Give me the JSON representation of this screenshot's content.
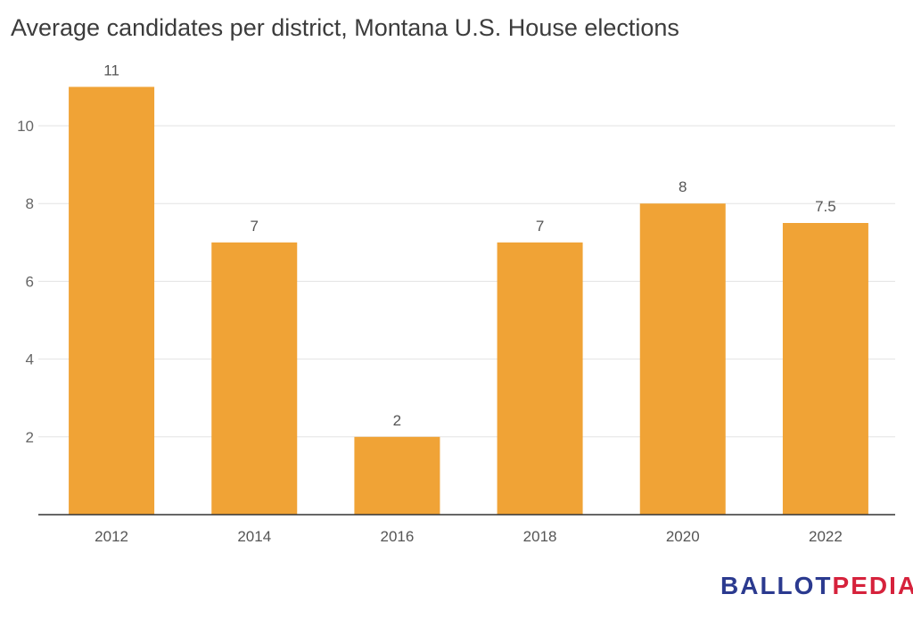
{
  "chart_data": {
    "type": "bar",
    "title": "Average candidates per district, Montana U.S. House elections",
    "categories": [
      "2012",
      "2014",
      "2016",
      "2018",
      "2020",
      "2022"
    ],
    "values": [
      11,
      7,
      2,
      7,
      8,
      7.5
    ],
    "value_labels": [
      "11",
      "7",
      "2",
      "7",
      "8",
      "7.5"
    ],
    "yticks": [
      2,
      4,
      6,
      8,
      10
    ],
    "ylim": [
      0,
      12
    ],
    "grid": true,
    "legend": "none",
    "bar_color": "#f0a336",
    "grid_color": "#e3e3e3",
    "axis_color": "#333333"
  },
  "brand": {
    "part1": "BALLOT",
    "part2": "PEDIA",
    "color1": "#2b3a8f",
    "color2": "#d6223c"
  }
}
